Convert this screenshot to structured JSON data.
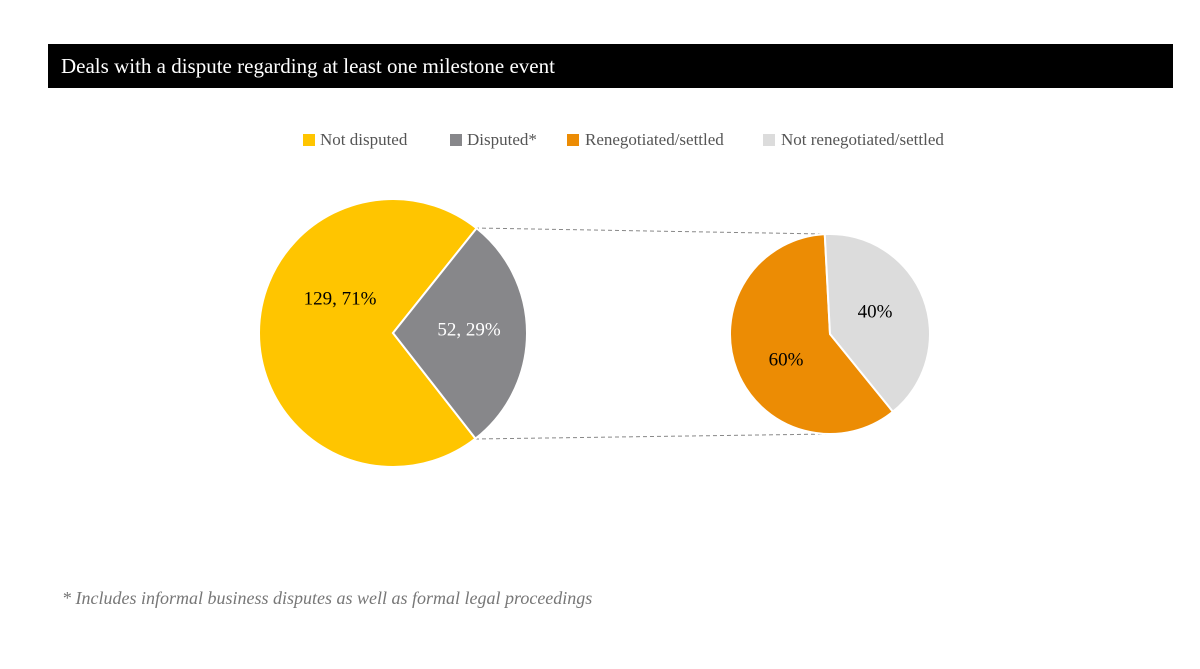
{
  "title": "Deals with a dispute regarding at least one milestone event",
  "footnote": "* Includes informal business disputes as well as formal legal proceedings",
  "chart_data": [
    {
      "type": "pie",
      "categories": [
        "Not disputed",
        "Disputed*"
      ],
      "values": [
        129,
        52
      ],
      "value_labels": [
        "129, 71%",
        "52, 29%"
      ],
      "colors": [
        "#ffc500",
        "#87878a"
      ]
    },
    {
      "type": "pie",
      "categories": [
        "Renegotiated/settled",
        "Not renegotiated/settled"
      ],
      "values": [
        60,
        40
      ],
      "value_labels": [
        "60%",
        "40%"
      ],
      "colors": [
        "#ec8c04",
        "#dcdcdc"
      ]
    }
  ]
}
